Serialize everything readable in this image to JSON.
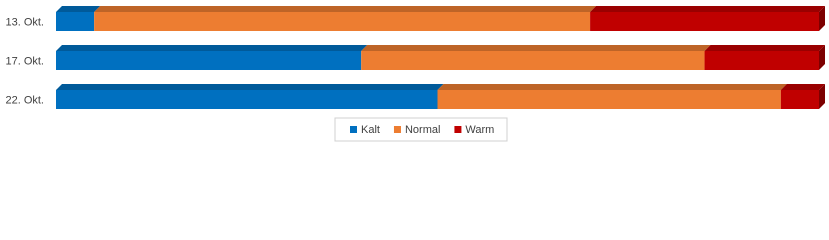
{
  "chart_data": {
    "type": "stacked-bar-horizontal-3d",
    "categories": [
      "13. Okt.",
      "17. Okt.",
      "22. Okt."
    ],
    "series": [
      {
        "name": "Kalt",
        "color": "#0070c0",
        "values": [
          5,
          40,
          50
        ]
      },
      {
        "name": "Normal",
        "color": "#ed7d31",
        "values": [
          65,
          45,
          45
        ]
      },
      {
        "name": "Warm",
        "color": "#c00000",
        "values": [
          30,
          15,
          5
        ]
      }
    ],
    "legend": "bottom"
  }
}
